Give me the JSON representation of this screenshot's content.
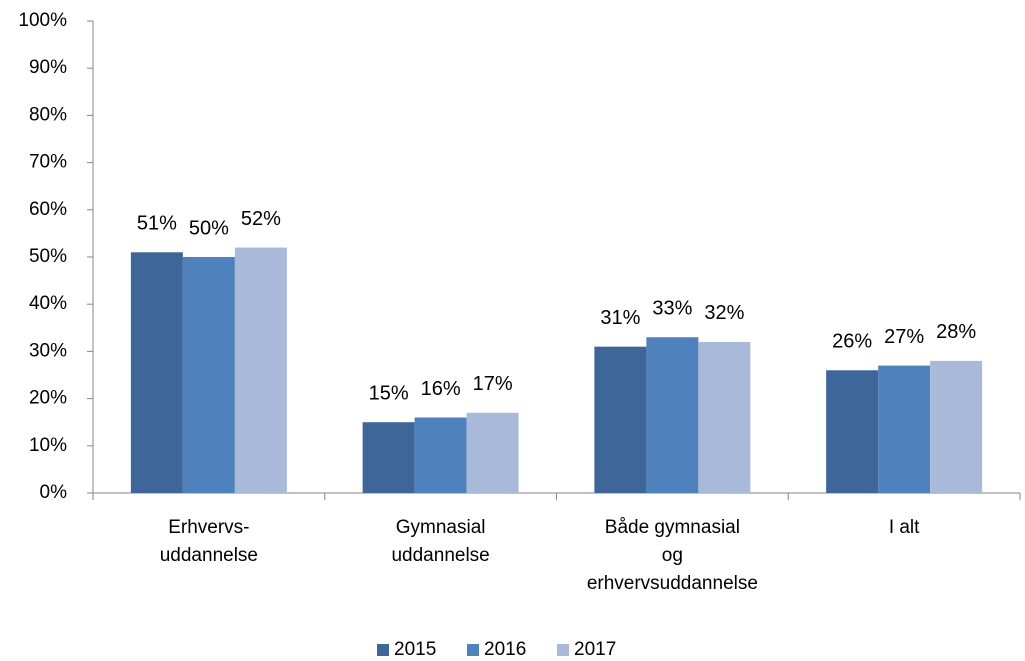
{
  "chart_data": {
    "type": "bar",
    "categories": [
      [
        "Erhvervs-",
        "uddannelse"
      ],
      [
        "Gymnasial",
        "uddannelse"
      ],
      [
        "Både  gymnasial",
        "og",
        "erhvervsuddannelse"
      ],
      [
        "I alt"
      ]
    ],
    "series": [
      {
        "name": "2015",
        "color": "#3e6699",
        "values": [
          51,
          15,
          31,
          26
        ],
        "value_labels": [
          "51%",
          "15%",
          "31%",
          "26%"
        ]
      },
      {
        "name": "2016",
        "color": "#4f81bd",
        "values": [
          50,
          16,
          33,
          27
        ],
        "value_labels": [
          "50%",
          "16%",
          "33%",
          "27%"
        ]
      },
      {
        "name": "2017",
        "color": "#a9b9d9",
        "values": [
          52,
          17,
          32,
          28
        ],
        "value_labels": [
          "52%",
          "17%",
          "32%",
          "28%"
        ]
      }
    ],
    "ylim": [
      0,
      100
    ],
    "yticks": [
      {
        "value": 0,
        "label": "0%"
      },
      {
        "value": 10,
        "label": "10%"
      },
      {
        "value": 20,
        "label": "20%"
      },
      {
        "value": 30,
        "label": "30%"
      },
      {
        "value": 40,
        "label": "40%"
      },
      {
        "value": 50,
        "label": "50%"
      },
      {
        "value": 60,
        "label": "60%"
      },
      {
        "value": 70,
        "label": "70%"
      },
      {
        "value": 80,
        "label": "80%"
      },
      {
        "value": 90,
        "label": "90%"
      },
      {
        "value": 100,
        "label": "100%"
      }
    ],
    "grid": false,
    "legend": "bottom"
  }
}
